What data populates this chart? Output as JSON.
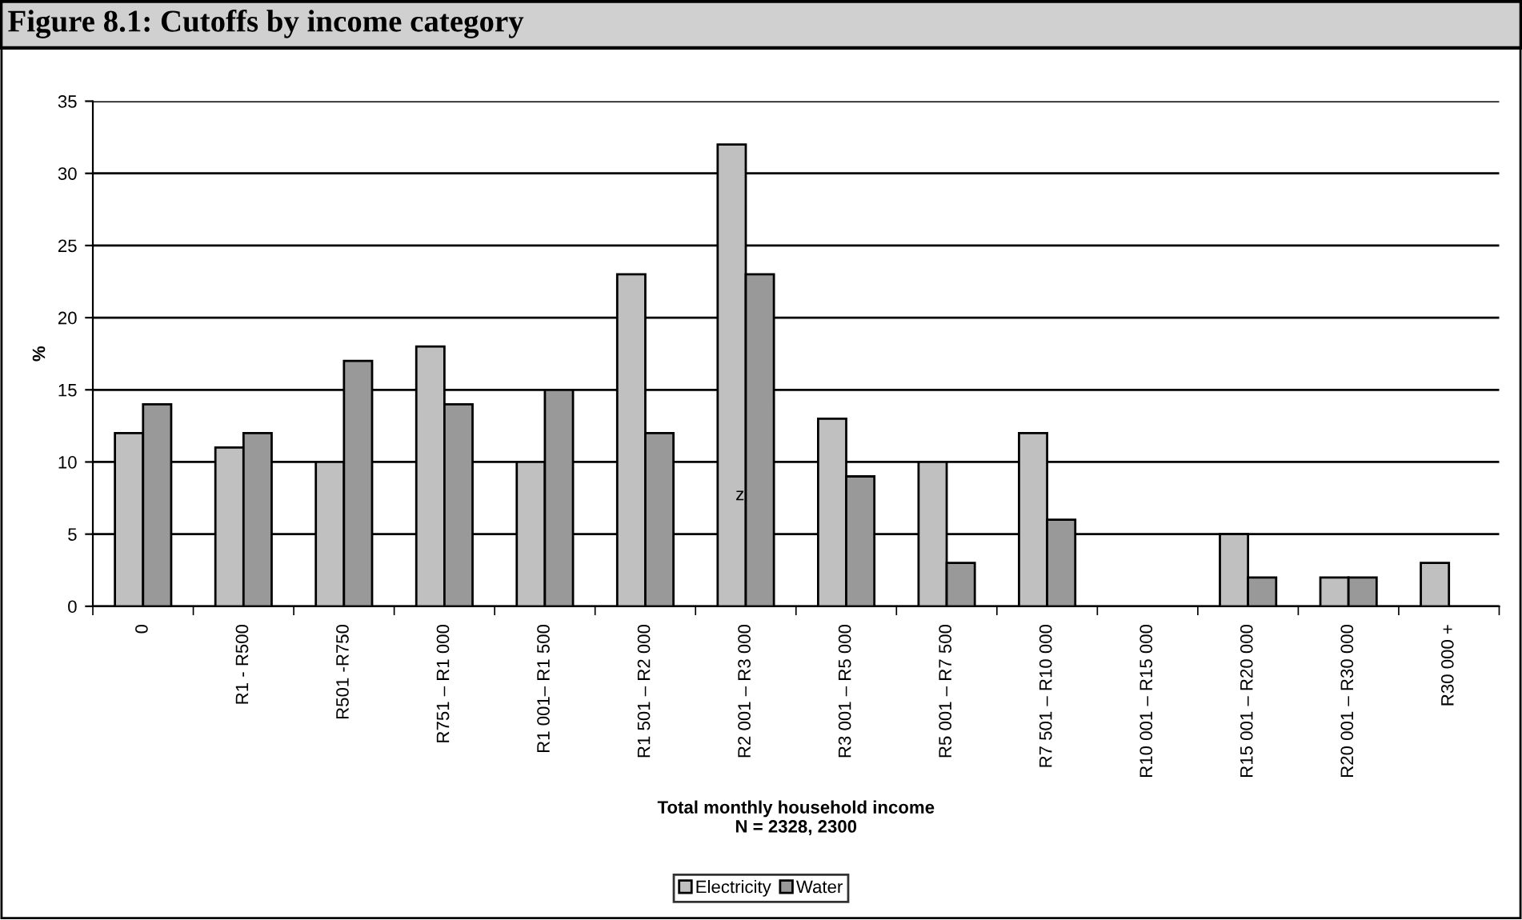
{
  "chart_data": {
    "type": "bar",
    "title": "Figure 8.1: Cutoffs by income category",
    "xlabel": "Total monthly household income\nN = 2328, 2300",
    "ylabel": "%",
    "categories": [
      "0",
      "R1 - R500",
      "R501 -R750",
      "R751 – R1 000",
      "R1 001– R1 500",
      "R1 501 – R2 000",
      "R2 001 – R3 000",
      "R3 001 – R5 000",
      "R5 001 – R7 500",
      "R7 501 – R10 000",
      "R10 001 – R15 000",
      "R15 001 – R20 000",
      "R20 001 – R30 000",
      "R30 000 +"
    ],
    "series": [
      {
        "name": "Electricity",
        "color": "#c0c0c0",
        "values": [
          12,
          11,
          10,
          18,
          10,
          23,
          32,
          13,
          10,
          12,
          null,
          5,
          2,
          3
        ]
      },
      {
        "name": "Water",
        "color": "#999999",
        "values": [
          14,
          12,
          17,
          14,
          15,
          12,
          23,
          9,
          3,
          6,
          null,
          2,
          2,
          null
        ]
      }
    ],
    "annotations": [
      "z"
    ],
    "ylim": [
      0,
      35
    ],
    "yticks": [
      0,
      5,
      10,
      15,
      20,
      25,
      30,
      35
    ],
    "grid": "y",
    "legend": "bottom"
  }
}
